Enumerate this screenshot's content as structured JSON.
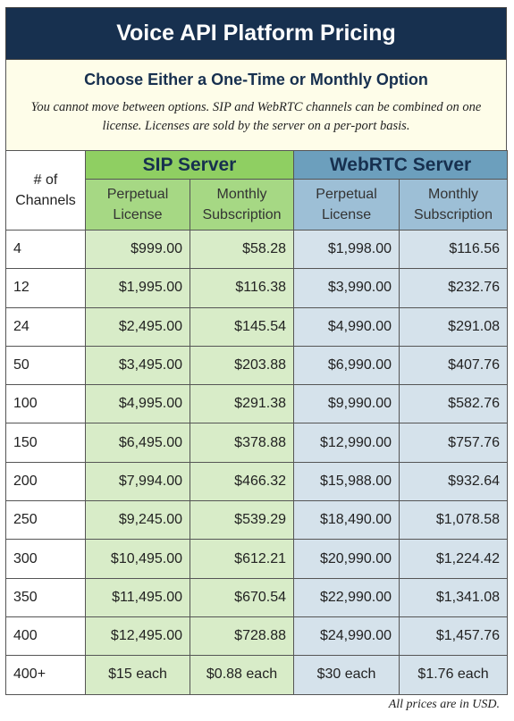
{
  "header": {
    "title": "Voice API Platform Pricing",
    "subtitle": "Choose Either a One-Time or Monthly Option",
    "note": "You cannot move between options. SIP and WebRTC channels can be combined on one license.  Licenses are sold by the server on a per-port basis."
  },
  "table": {
    "channels_header": "# of Channels",
    "group_headers": [
      "SIP Server",
      "WebRTC Server"
    ],
    "column_headers": [
      "Perpetual License",
      "Monthly Subscription",
      "Perpetual License",
      "Monthly Subscription"
    ],
    "rows": [
      [
        "4",
        "$999.00",
        "$58.28",
        "$1,998.00",
        "$116.56"
      ],
      [
        "12",
        "$1,995.00",
        "$116.38",
        "$3,990.00",
        "$232.76"
      ],
      [
        "24",
        "$2,495.00",
        "$145.54",
        "$4,990.00",
        "$291.08"
      ],
      [
        "50",
        "$3,495.00",
        "$203.88",
        "$6,990.00",
        "$407.76"
      ],
      [
        "100",
        "$4,995.00",
        "$291.38",
        "$9,990.00",
        "$582.76"
      ],
      [
        "150",
        "$6,495.00",
        "$378.88",
        "$12,990.00",
        "$757.76"
      ],
      [
        "200",
        "$7,994.00",
        "$466.32",
        "$15,988.00",
        "$932.64"
      ],
      [
        "250",
        "$9,245.00",
        "$539.29",
        "$18,490.00",
        "$1,078.58"
      ],
      [
        "300",
        "$10,495.00",
        "$612.21",
        "$20,990.00",
        "$1,224.42"
      ],
      [
        "350",
        "$11,495.00",
        "$670.54",
        "$22,990.00",
        "$1,341.08"
      ],
      [
        "400",
        "$12,495.00",
        "$728.88",
        "$24,990.00",
        "$1,457.76"
      ],
      [
        "400+",
        "$15 each",
        "$0.88 each",
        "$30 each",
        "$1.76 each"
      ]
    ]
  },
  "footnote": "All prices are in USD."
}
